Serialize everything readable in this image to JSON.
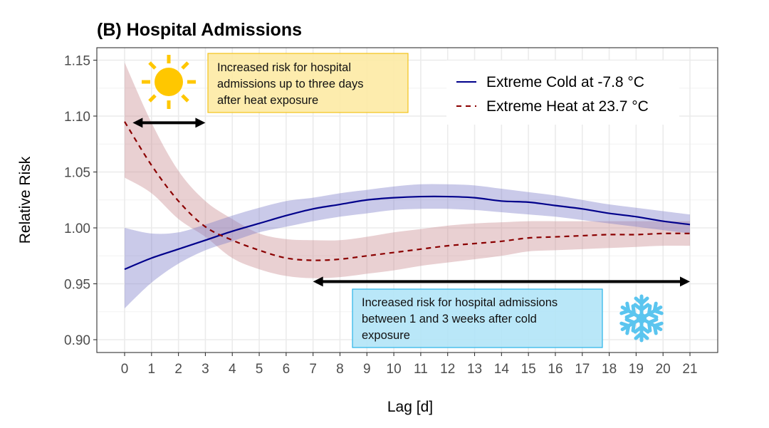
{
  "chart_data": {
    "type": "line",
    "title": "(B) Hospital Admissions",
    "xlabel": "Lag [d]",
    "ylabel": "Relative Risk",
    "xlim": [
      0,
      21
    ],
    "ylim": [
      0.89,
      1.16
    ],
    "xticks": [
      0,
      1,
      2,
      3,
      4,
      5,
      6,
      7,
      8,
      9,
      10,
      11,
      12,
      13,
      14,
      15,
      16,
      17,
      18,
      19,
      20,
      21
    ],
    "yticks": [
      0.9,
      0.95,
      1.0,
      1.05,
      1.1,
      1.15
    ],
    "ytick_labels": [
      "0.90",
      "0.95",
      "1.00",
      "1.05",
      "1.10",
      "1.15"
    ],
    "grid": true,
    "legend_position": "top-right",
    "x": [
      0,
      1,
      2,
      3,
      4,
      5,
      6,
      7,
      8,
      9,
      10,
      11,
      12,
      13,
      14,
      15,
      16,
      17,
      18,
      19,
      20,
      21
    ],
    "series": [
      {
        "name": "Extreme Cold at -7.8 °C",
        "line_style": "solid",
        "color": "#00008b",
        "band_color": "#7b7bc8",
        "values": [
          0.963,
          0.973,
          0.981,
          0.989,
          0.997,
          1.004,
          1.011,
          1.017,
          1.021,
          1.025,
          1.027,
          1.028,
          1.028,
          1.027,
          1.024,
          1.023,
          1.02,
          1.017,
          1.013,
          1.01,
          1.006,
          1.003
        ],
        "ci_upper": [
          1.0,
          0.995,
          0.996,
          1.003,
          1.011,
          1.018,
          1.024,
          1.027,
          1.031,
          1.034,
          1.037,
          1.039,
          1.039,
          1.038,
          1.035,
          1.032,
          1.029,
          1.025,
          1.021,
          1.018,
          1.015,
          1.012
        ],
        "ci_lower": [
          0.928,
          0.951,
          0.968,
          0.98,
          0.988,
          0.996,
          1.001,
          1.006,
          1.01,
          1.013,
          1.016,
          1.017,
          1.017,
          1.016,
          1.014,
          1.012,
          1.01,
          1.007,
          1.004,
          1.001,
          0.998,
          0.995
        ]
      },
      {
        "name": "Extreme Heat at 23.7 °C",
        "line_style": "dashed",
        "color": "#8b0000",
        "band_color": "#c98a8f",
        "values": [
          1.095,
          1.056,
          1.024,
          1.001,
          0.989,
          0.98,
          0.973,
          0.971,
          0.972,
          0.975,
          0.978,
          0.981,
          0.984,
          0.986,
          0.988,
          0.991,
          0.992,
          0.993,
          0.994,
          0.994,
          0.995,
          0.995
        ],
        "ci_upper": [
          1.148,
          1.094,
          1.051,
          1.024,
          1.008,
          0.995,
          0.99,
          0.989,
          0.989,
          0.992,
          0.996,
          0.999,
          1.002,
          1.004,
          1.005,
          1.006,
          1.006,
          1.006,
          1.006,
          1.006,
          1.006,
          1.006
        ],
        "ci_lower": [
          1.045,
          1.031,
          1.008,
          0.992,
          0.973,
          0.963,
          0.957,
          0.955,
          0.956,
          0.959,
          0.962,
          0.966,
          0.969,
          0.972,
          0.975,
          0.979,
          0.98,
          0.981,
          0.982,
          0.983,
          0.984,
          0.984
        ]
      }
    ],
    "annotations": [
      {
        "id": "heat-note",
        "lines": [
          "Increased risk for hospital",
          "admissions up to three days",
          "after heat exposure"
        ],
        "fill": "#fdeaa4",
        "border": "#f3c319",
        "arrow_from_lag": 0.3,
        "arrow_to_lag": 3,
        "arrow_at_value": 1.094,
        "icon": "sun-icon",
        "icon_color": "#ffc700"
      },
      {
        "id": "cold-note",
        "lines": [
          "Increased risk for hospital admissions",
          "between 1 and 3 weeks after cold",
          "exposure"
        ],
        "fill": "#b1e4f7",
        "border": "#29b5e8",
        "arrow_from_lag": 7,
        "arrow_to_lag": 21,
        "arrow_at_value": 0.952,
        "icon": "snowflake-icon",
        "icon_color": "#5bc5ef"
      }
    ]
  }
}
